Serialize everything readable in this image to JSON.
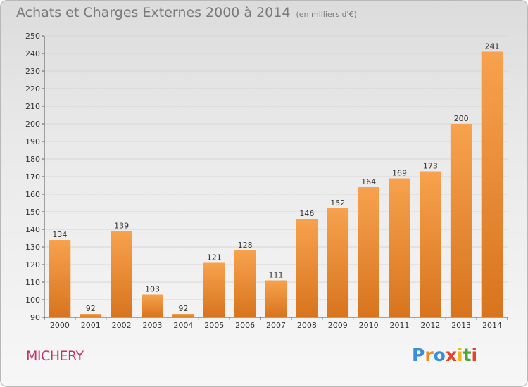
{
  "header": {
    "title": "Achats et Charges Externes 2000 à 2014",
    "subtitle": "(en milliers d'€)"
  },
  "footer": {
    "commune": "MICHERY",
    "logo_text": "Proxiti",
    "logo_colors": [
      "#3a8fd8",
      "#f08a1c",
      "#3a8fd8",
      "#e8402a",
      "#f0b41c",
      "#4aa832",
      "#e8402a"
    ]
  },
  "chart_data": {
    "type": "bar",
    "title": "Achats et Charges Externes 2000 à 2014",
    "subtitle": "(en milliers d'€)",
    "categories": [
      "2000",
      "2001",
      "2002",
      "2003",
      "2004",
      "2005",
      "2006",
      "2007",
      "2008",
      "2009",
      "2010",
      "2011",
      "2012",
      "2013",
      "2014"
    ],
    "values": [
      134,
      92,
      139,
      103,
      92,
      121,
      128,
      111,
      146,
      152,
      164,
      169,
      173,
      200,
      241
    ],
    "ylim": [
      90,
      250
    ],
    "yticks": [
      90,
      100,
      110,
      120,
      130,
      140,
      150,
      160,
      170,
      180,
      190,
      200,
      210,
      220,
      230,
      240,
      250
    ],
    "grid": true,
    "bar_color_top": "#f7a24e",
    "bar_color_bottom": "#d8741e"
  }
}
